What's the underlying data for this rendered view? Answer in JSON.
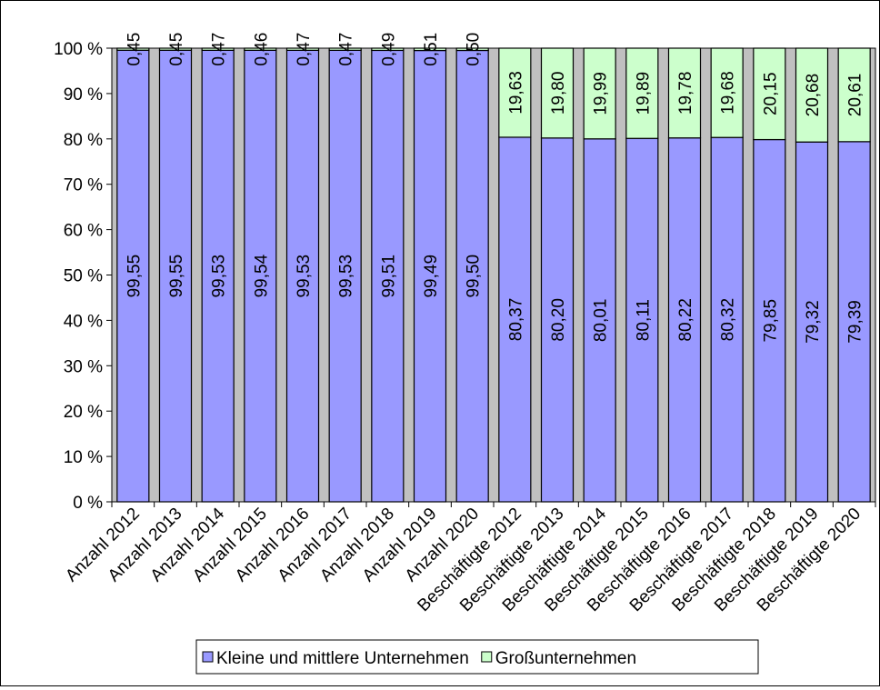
{
  "chart_data": {
    "type": "bar",
    "stacked": true,
    "normalized": true,
    "categories": [
      "Anzahl 2012",
      "Anzahl 2013",
      "Anzahl 2014",
      "Anzahl 2015",
      "Anzahl 2016",
      "Anzahl 2017",
      "Anzahl 2018",
      "Anzahl 2019",
      "Anzahl 2020",
      "Beschäftigte 2012",
      "Beschäftigte 2013",
      "Beschäftigte 2014",
      "Beschäftigte 2015",
      "Beschäftigte 2016",
      "Beschäftigte 2017",
      "Beschäftigte 2018",
      "Beschäftigte 2019",
      "Beschäftigte 2020"
    ],
    "series": [
      {
        "name": "Kleine und mittlere Unternehmen",
        "color": "#9999ff",
        "values": [
          99.55,
          99.55,
          99.53,
          99.54,
          99.53,
          99.53,
          99.51,
          99.49,
          99.5,
          80.37,
          80.2,
          80.01,
          80.11,
          80.22,
          80.32,
          79.85,
          79.32,
          79.39
        ],
        "labels": [
          "99,55",
          "99,55",
          "99,53",
          "99,54",
          "99,53",
          "99,53",
          "99,51",
          "99,49",
          "99,50",
          "80,37",
          "80,20",
          "80,01",
          "80,11",
          "80,22",
          "80,32",
          "79,85",
          "79,32",
          "79,39"
        ]
      },
      {
        "name": "Großunternehmen",
        "color": "#ccffcc",
        "values": [
          0.45,
          0.45,
          0.47,
          0.46,
          0.47,
          0.47,
          0.49,
          0.51,
          0.5,
          19.63,
          19.8,
          19.99,
          19.89,
          19.78,
          19.68,
          20.15,
          20.68,
          20.61
        ],
        "labels": [
          "0,45",
          "0,45",
          "0,47",
          "0,46",
          "0,47",
          "0,47",
          "0,49",
          "0,51",
          "0,50",
          "19,63",
          "19,80",
          "19,99",
          "19,89",
          "19,78",
          "19,68",
          "20,15",
          "20,68",
          "20,61"
        ]
      }
    ],
    "ylim": [
      0,
      100
    ],
    "yticks": [
      0,
      10,
      20,
      30,
      40,
      50,
      60,
      70,
      80,
      90,
      100
    ],
    "ytick_labels": [
      "0 %",
      "10 %",
      "20 %",
      "30 %",
      "40 %",
      "50 %",
      "60 %",
      "70 %",
      "80 %",
      "90 %",
      "100 %"
    ],
    "grid": false,
    "plot_background": "#c0c0c0",
    "legend_position": "bottom"
  }
}
